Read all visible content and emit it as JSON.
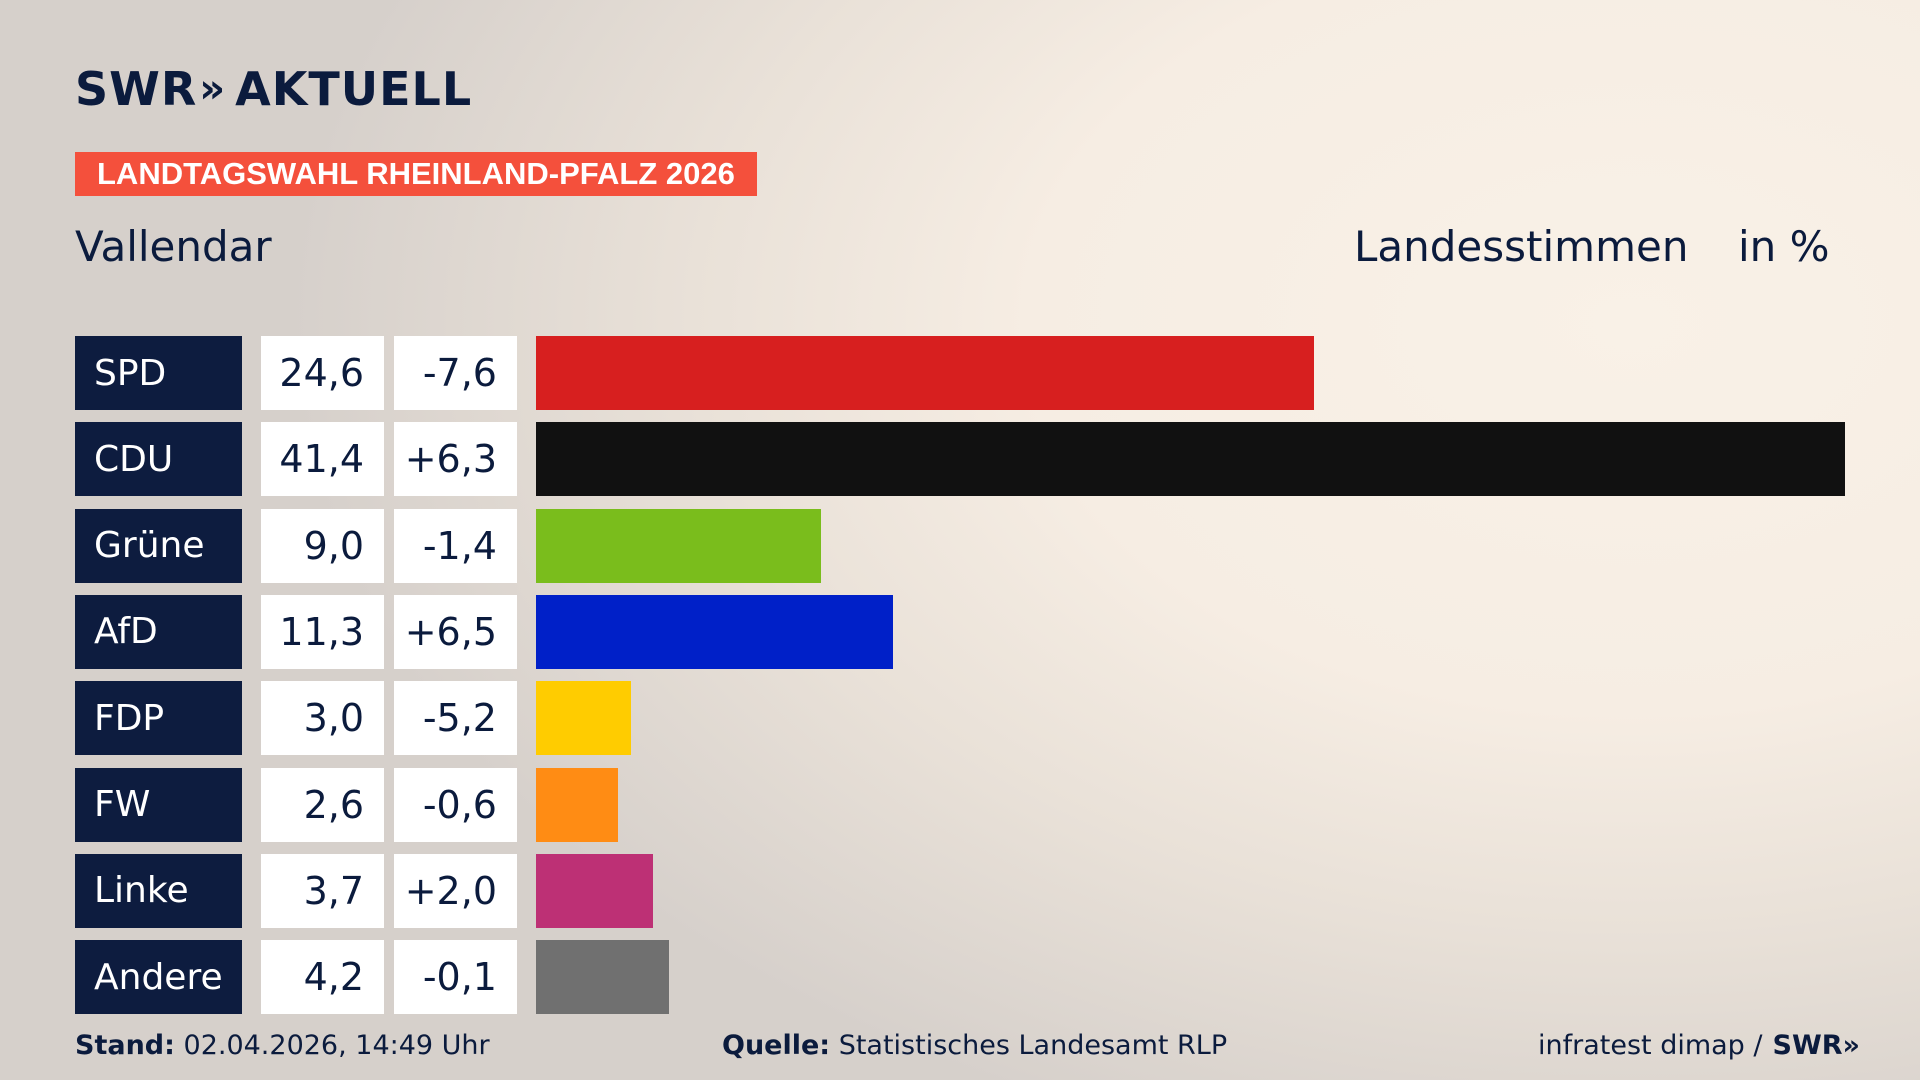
{
  "brand": {
    "logo_a": "SWR",
    "logo_chevrons": "»",
    "logo_b": "AKTUELL"
  },
  "banner": "LANDTAGSWAHL RHEINLAND-PFALZ 2026",
  "region": "Vallendar",
  "header": {
    "vote_type": "Landesstimmen",
    "unit": "in %"
  },
  "chart_data": {
    "type": "bar",
    "orientation": "horizontal",
    "categories": [
      "SPD",
      "CDU",
      "Grüne",
      "AfD",
      "FDP",
      "FW",
      "Linke",
      "Andere"
    ],
    "values": [
      24.6,
      41.4,
      9.0,
      11.3,
      3.0,
      2.6,
      3.7,
      4.2
    ],
    "value_labels": [
      "24,6",
      "41,4",
      "9,0",
      "11,3",
      "3,0",
      "2,6",
      "3,7",
      "4,2"
    ],
    "diffs": [
      -7.6,
      6.3,
      -1.4,
      6.5,
      -5.2,
      -0.6,
      2.0,
      -0.1
    ],
    "diff_labels": [
      "-7,6",
      "+6,3",
      "-1,4",
      "+6,5",
      "-5,2",
      "-0,6",
      "+2,0",
      "-0,1"
    ],
    "colors": [
      "#d71f1f",
      "#111111",
      "#7abd1c",
      "#0020c8",
      "#ffcc00",
      "#ff8c14",
      "#bd3075",
      "#707070"
    ],
    "xlim": [
      0,
      41.4
    ],
    "grid": false,
    "legend": "none"
  },
  "footer": {
    "stand_label": "Stand:",
    "stand_value": "02.04.2026, 14:49 Uhr",
    "source_label": "Quelle:",
    "source_value": "Statistisches Landesamt RLP",
    "credit": "infratest dimap /",
    "credit_logo": "SWR»"
  }
}
